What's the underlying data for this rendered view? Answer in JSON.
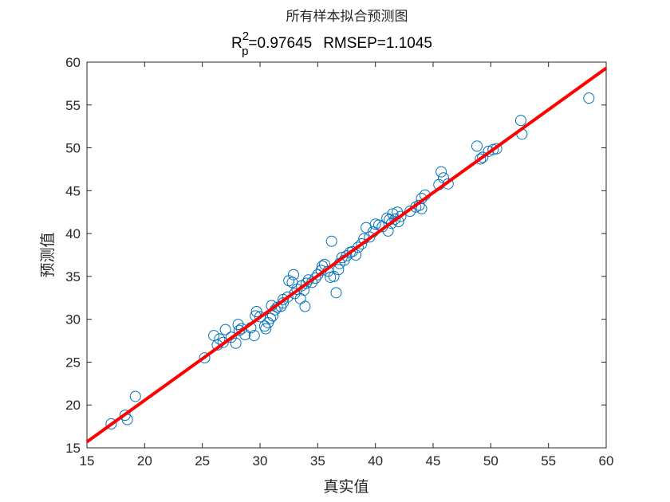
{
  "chart_data": {
    "type": "scatter",
    "title": "所有样本拟合预测图",
    "subtitle": {
      "r_symbol": "R",
      "r_sup": "2",
      "r_sub": "p",
      "r_value": "=0.97645",
      "rmsep": "RMSEP=1.1045"
    },
    "xlabel": "真实值",
    "ylabel": "预测值",
    "xlim": [
      15,
      60
    ],
    "ylim": [
      15,
      60
    ],
    "xticks": [
      "15",
      "20",
      "25",
      "30",
      "35",
      "40",
      "45",
      "50",
      "55",
      "60"
    ],
    "yticks": [
      "15",
      "20",
      "25",
      "30",
      "35",
      "40",
      "45",
      "50",
      "55",
      "60"
    ],
    "grid": false,
    "marker": "open-circle",
    "marker_color": "#0072BD",
    "fit_line_color": "#FF0000",
    "fit_line": {
      "x": [
        15,
        60
      ],
      "y": [
        15.7,
        59.3
      ]
    },
    "points": [
      [
        17.1,
        17.8
      ],
      [
        18.3,
        18.8
      ],
      [
        18.5,
        18.3
      ],
      [
        19.2,
        21.0
      ],
      [
        25.2,
        25.5
      ],
      [
        26.0,
        28.1
      ],
      [
        26.3,
        27.0
      ],
      [
        26.5,
        27.7
      ],
      [
        26.8,
        27.3
      ],
      [
        27.0,
        28.8
      ],
      [
        27.5,
        27.9
      ],
      [
        27.9,
        27.2
      ],
      [
        28.1,
        29.4
      ],
      [
        28.2,
        28.7
      ],
      [
        28.4,
        28.9
      ],
      [
        28.7,
        28.2
      ],
      [
        29.2,
        29.0
      ],
      [
        29.5,
        28.1
      ],
      [
        29.6,
        30.4
      ],
      [
        29.7,
        30.9
      ],
      [
        30.0,
        30.3
      ],
      [
        30.4,
        29.2
      ],
      [
        30.5,
        28.9
      ],
      [
        30.7,
        29.6
      ],
      [
        30.9,
        30.1
      ],
      [
        31.1,
        30.4
      ],
      [
        31.0,
        31.6
      ],
      [
        31.3,
        31.1
      ],
      [
        31.5,
        31.4
      ],
      [
        31.8,
        31.5
      ],
      [
        32.0,
        31.9
      ],
      [
        32.0,
        32.3
      ],
      [
        32.4,
        32.6
      ],
      [
        32.5,
        34.5
      ],
      [
        32.8,
        34.3
      ],
      [
        32.9,
        35.2
      ],
      [
        33.0,
        33.0
      ],
      [
        33.2,
        33.5
      ],
      [
        33.5,
        32.4
      ],
      [
        33.6,
        33.9
      ],
      [
        33.8,
        33.4
      ],
      [
        33.9,
        31.5
      ],
      [
        34.0,
        34.2
      ],
      [
        34.2,
        34.6
      ],
      [
        34.5,
        34.3
      ],
      [
        34.8,
        34.8
      ],
      [
        35.0,
        35.2
      ],
      [
        35.3,
        35.7
      ],
      [
        35.4,
        36.2
      ],
      [
        35.6,
        36.4
      ],
      [
        35.9,
        35.6
      ],
      [
        36.1,
        34.9
      ],
      [
        36.2,
        39.1
      ],
      [
        36.4,
        35.0
      ],
      [
        36.6,
        33.1
      ],
      [
        36.8,
        35.8
      ],
      [
        36.9,
        36.5
      ],
      [
        37.1,
        37.2
      ],
      [
        37.3,
        36.9
      ],
      [
        37.5,
        37.4
      ],
      [
        37.8,
        37.8
      ],
      [
        38.0,
        37.9
      ],
      [
        38.3,
        37.5
      ],
      [
        38.5,
        38.4
      ],
      [
        38.8,
        38.8
      ],
      [
        39.0,
        39.4
      ],
      [
        39.2,
        40.7
      ],
      [
        39.5,
        39.6
      ],
      [
        39.8,
        40.2
      ],
      [
        40.0,
        41.1
      ],
      [
        40.3,
        41.0
      ],
      [
        40.6,
        40.8
      ],
      [
        41.0,
        41.8
      ],
      [
        41.1,
        40.3
      ],
      [
        41.2,
        41.6
      ],
      [
        41.4,
        41.2
      ],
      [
        41.5,
        42.3
      ],
      [
        41.7,
        41.7
      ],
      [
        41.9,
        42.5
      ],
      [
        42.0,
        41.4
      ],
      [
        42.2,
        42.0
      ],
      [
        43.0,
        42.6
      ],
      [
        43.5,
        43.1
      ],
      [
        43.8,
        43.3
      ],
      [
        44.0,
        44.1
      ],
      [
        44.0,
        42.9
      ],
      [
        44.3,
        44.5
      ],
      [
        45.5,
        45.7
      ],
      [
        45.7,
        47.2
      ],
      [
        45.9,
        46.5
      ],
      [
        46.3,
        45.8
      ],
      [
        48.8,
        50.2
      ],
      [
        49.1,
        48.7
      ],
      [
        49.3,
        48.9
      ],
      [
        49.8,
        49.6
      ],
      [
        50.2,
        49.8
      ],
      [
        50.5,
        49.9
      ],
      [
        52.6,
        53.2
      ],
      [
        52.7,
        51.6
      ],
      [
        58.5,
        55.8
      ]
    ]
  }
}
